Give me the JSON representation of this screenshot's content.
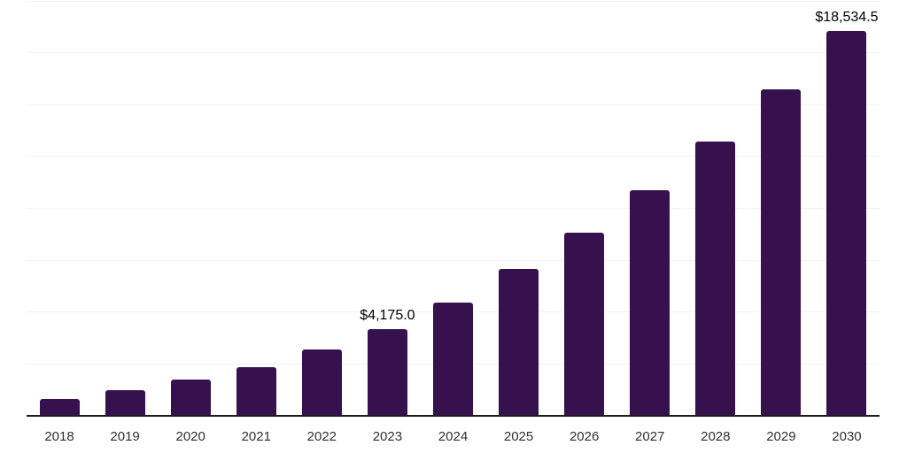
{
  "chart_data": {
    "type": "bar",
    "title": "",
    "xlabel": "",
    "ylabel": "",
    "categories": [
      "2018",
      "2019",
      "2020",
      "2021",
      "2022",
      "2023",
      "2024",
      "2025",
      "2026",
      "2027",
      "2028",
      "2029",
      "2030"
    ],
    "values": [
      800,
      1240,
      1755,
      2345,
      3200,
      4175.0,
      5450,
      7065,
      8820,
      10885,
      13225,
      15750,
      18534.5
    ],
    "labeled_points": [
      {
        "category_index": 5,
        "label": "$4,175.0"
      },
      {
        "category_index": 12,
        "label": "$18,534.5"
      }
    ],
    "ylim": [
      0,
      20000
    ],
    "grid_step": 2500,
    "grid": "horizontal-light",
    "legend": "none",
    "y_axis_tick_labels": "none",
    "colors": {
      "bar": "#37114D",
      "grid": "#F2F2F2",
      "axis": "#1C1C1C",
      "tick_label": "#303030",
      "data_label": "#000000",
      "background": "#FFFFFF"
    }
  }
}
